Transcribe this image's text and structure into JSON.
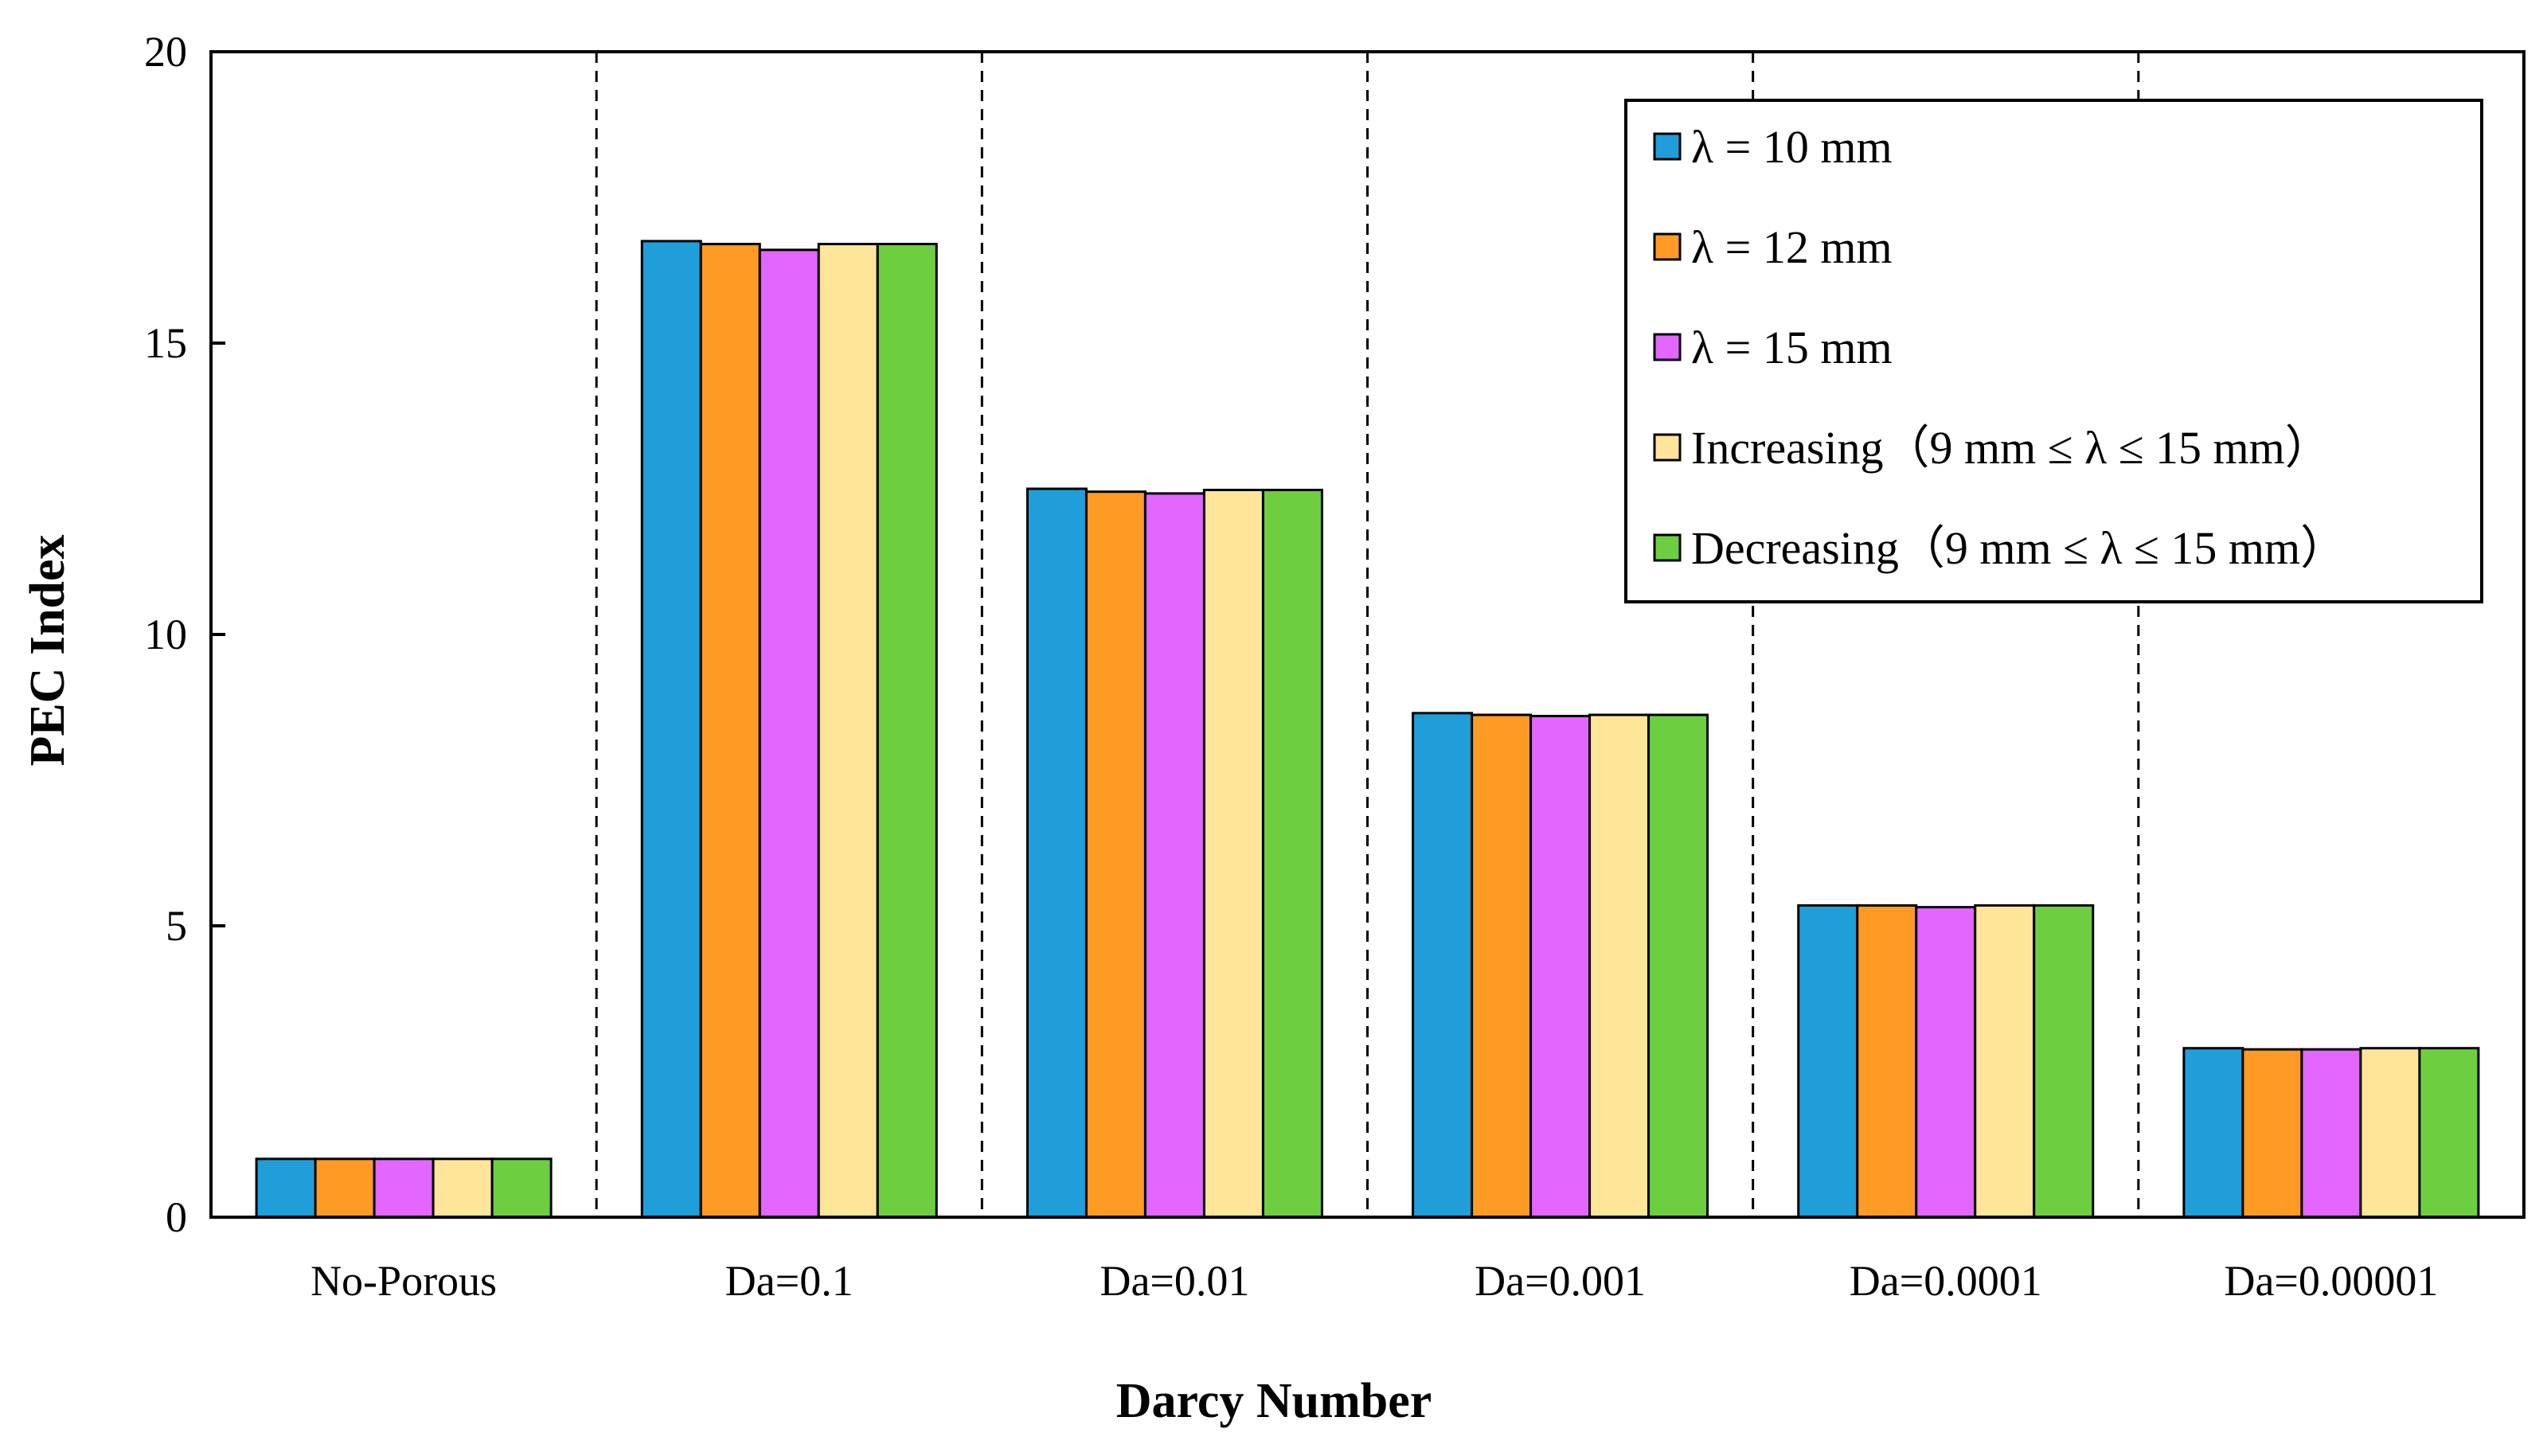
{
  "chart_data": {
    "type": "bar",
    "title": "",
    "xlabel": "Darcy Number",
    "ylabel": "PEC Index",
    "ylim": [
      0,
      20
    ],
    "yticks": [
      "0",
      "5",
      "10",
      "15",
      "20"
    ],
    "categories": [
      "No-Porous",
      "Da=0.1",
      "Da=0.01",
      "Da=0.001",
      "Da=0.0001",
      "Da=0.00001"
    ],
    "legend_position": "top-right",
    "series": [
      {
        "name": "λ = 10 mm",
        "color": "#1f9ed9",
        "values": [
          1.0,
          16.75,
          12.5,
          8.65,
          5.35,
          2.9
        ]
      },
      {
        "name": "λ = 12 mm",
        "color": "#ff9a24",
        "values": [
          1.0,
          16.7,
          12.45,
          8.62,
          5.35,
          2.88
        ]
      },
      {
        "name": "λ = 15 mm",
        "color": "#e266ff",
        "values": [
          1.0,
          16.6,
          12.42,
          8.6,
          5.32,
          2.88
        ]
      },
      {
        "name": "Increasing（9 mm ≤ λ ≤ 15 mm）",
        "color": "#ffe599",
        "values": [
          1.0,
          16.7,
          12.48,
          8.62,
          5.35,
          2.9
        ]
      },
      {
        "name": "Decreasing（9 mm ≤ λ ≤ 15 mm）",
        "color": "#6dcf40",
        "values": [
          1.0,
          16.7,
          12.48,
          8.62,
          5.35,
          2.9
        ]
      }
    ],
    "separators": "dashed vertical lines between categories"
  }
}
